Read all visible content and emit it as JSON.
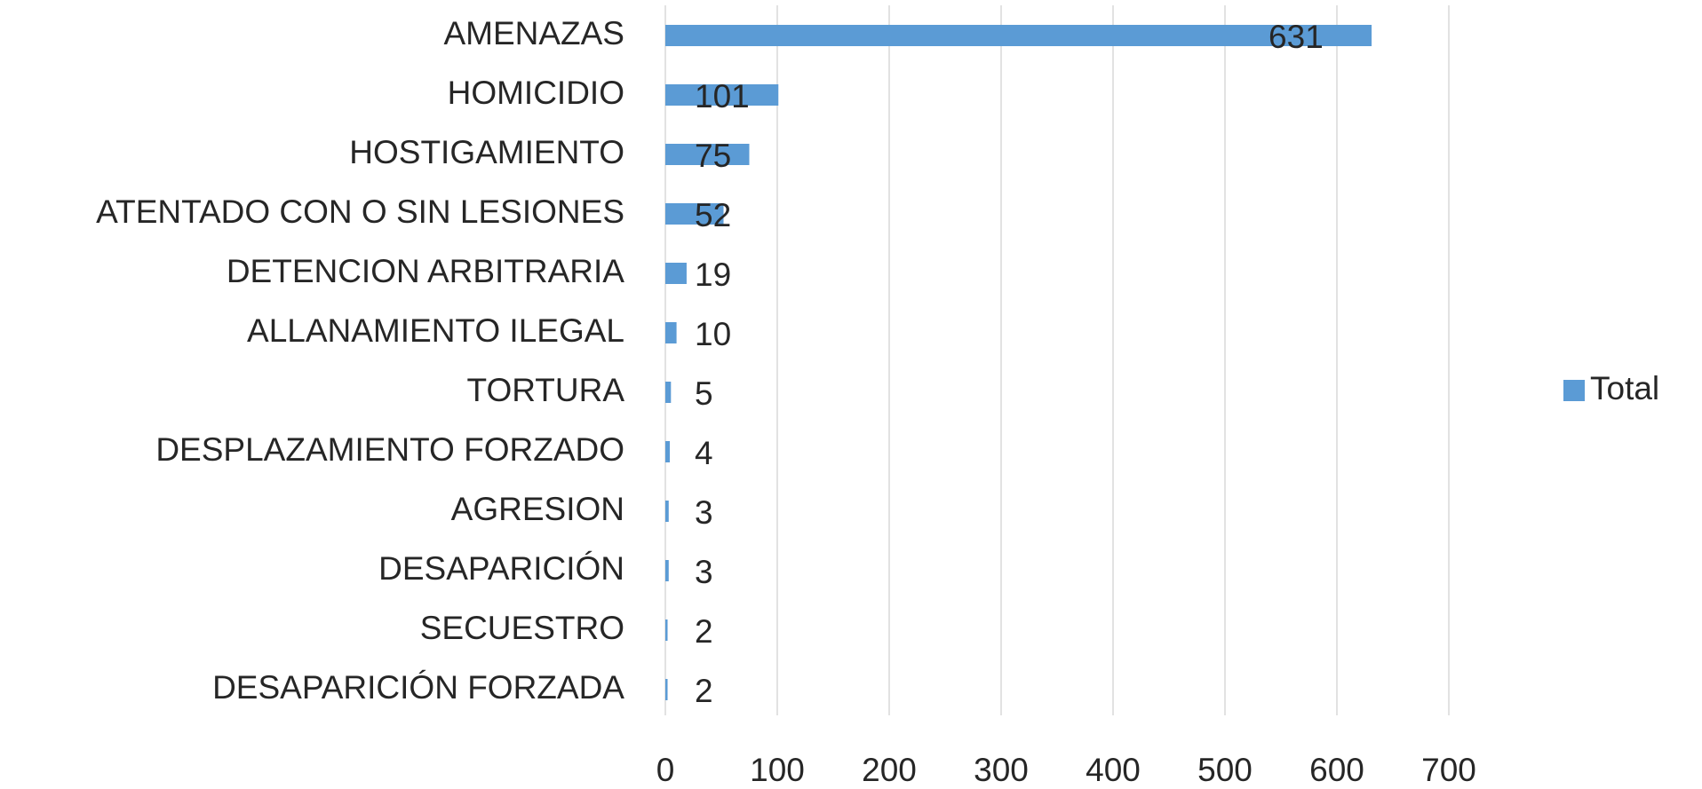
{
  "chart_data": {
    "type": "bar",
    "orientation": "horizontal",
    "categories": [
      "AMENAZAS",
      "HOMICIDIO",
      "HOSTIGAMIENTO",
      "ATENTADO CON O SIN LESIONES",
      "DETENCION ARBITRARIA",
      "ALLANAMIENTO ILEGAL",
      "TORTURA",
      "DESPLAZAMIENTO FORZADO",
      "AGRESION",
      "DESAPARICIÓN",
      "SECUESTRO",
      "DESAPARICIÓN FORZADA"
    ],
    "series": [
      {
        "name": "Total",
        "color": "#5b9bd5",
        "values": [
          631,
          101,
          75,
          52,
          19,
          10,
          5,
          4,
          3,
          3,
          2,
          2
        ]
      }
    ],
    "xlim": [
      0,
      700
    ],
    "xticks": [
      0,
      100,
      200,
      300,
      400,
      500,
      600,
      700
    ],
    "grid": true,
    "legend": "right"
  }
}
